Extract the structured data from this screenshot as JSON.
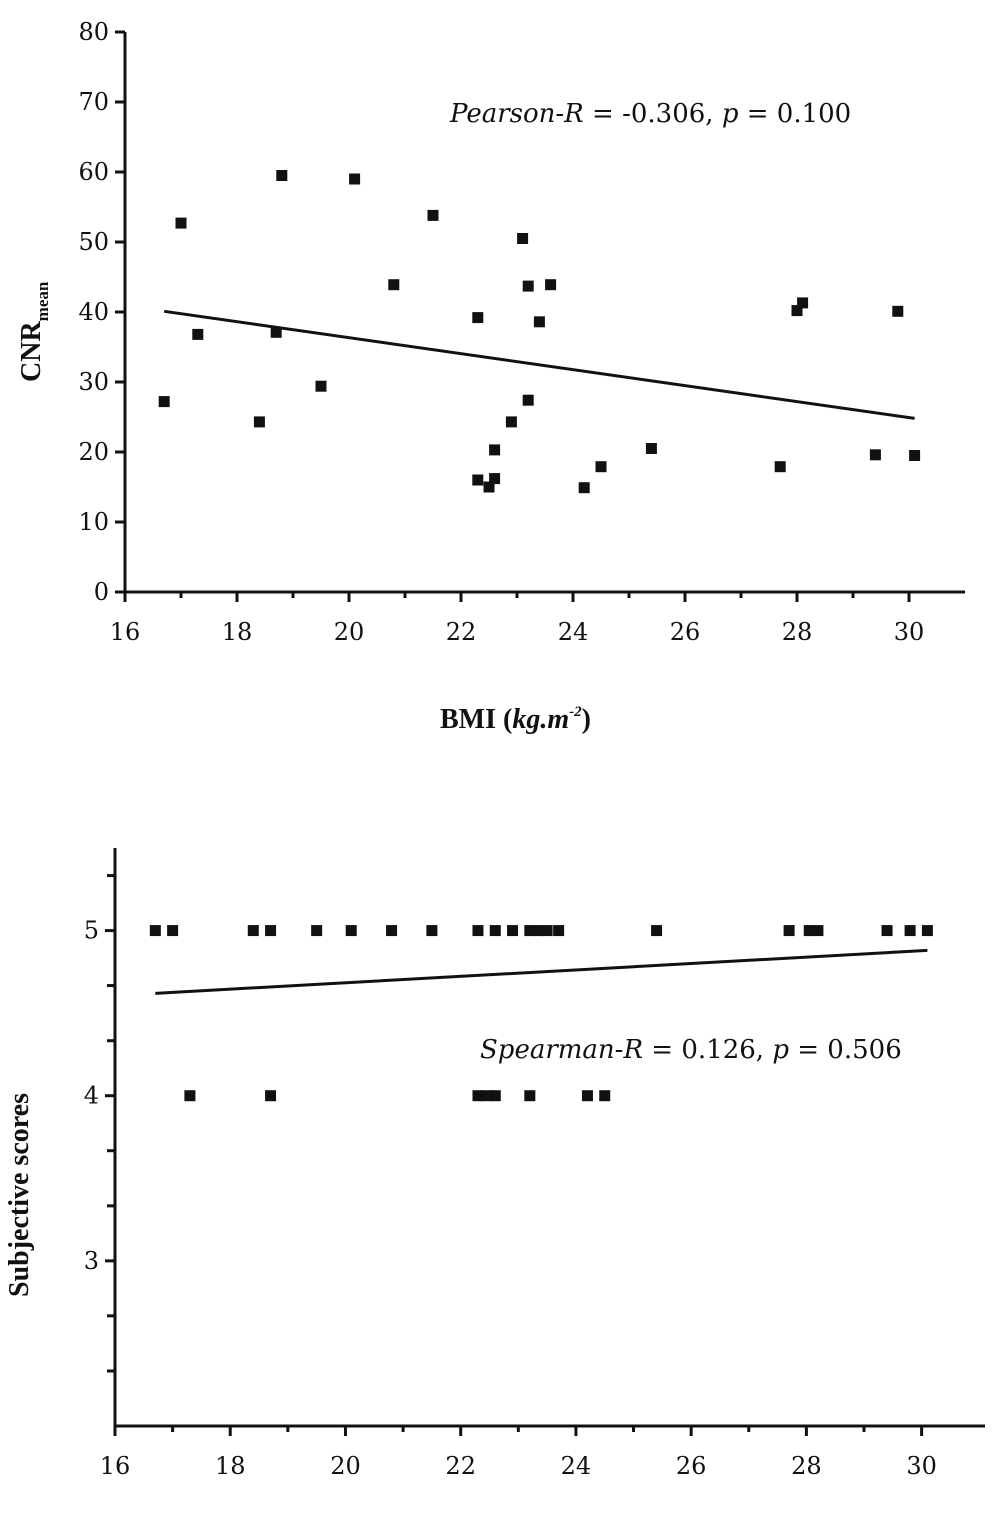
{
  "chart_data": [
    {
      "type": "scatter",
      "xlabel": "BMI (kg.m-2)",
      "xlabel_parts": {
        "prefix": "BMI (",
        "unit": "kg.m",
        "sup": "-2",
        "suffix": ")"
      },
      "ylabel": "CNRmean",
      "ylabel_parts": {
        "main": "CNR",
        "sub": "mean"
      },
      "xlim": [
        16,
        31
      ],
      "ylim": [
        0,
        80
      ],
      "xticks": [
        16,
        18,
        20,
        22,
        24,
        26,
        28,
        30
      ],
      "yticks": [
        0,
        10,
        20,
        30,
        40,
        50,
        60,
        70,
        80
      ],
      "annotation": {
        "lhs": "Pearson-R",
        "mid": " = -0.306, ",
        "p": "p",
        "rhs": " = 0.100"
      },
      "points": [
        [
          16.7,
          27.2
        ],
        [
          17.0,
          52.7
        ],
        [
          17.3,
          36.8
        ],
        [
          18.4,
          24.3
        ],
        [
          18.7,
          37.1
        ],
        [
          18.8,
          59.5
        ],
        [
          19.5,
          29.4
        ],
        [
          20.1,
          59.0
        ],
        [
          20.8,
          43.9
        ],
        [
          21.5,
          53.8
        ],
        [
          22.3,
          39.2
        ],
        [
          22.3,
          16.0
        ],
        [
          22.5,
          15.0
        ],
        [
          22.6,
          16.2
        ],
        [
          22.6,
          20.3
        ],
        [
          22.9,
          24.3
        ],
        [
          23.1,
          50.5
        ],
        [
          23.2,
          43.7
        ],
        [
          23.2,
          27.4
        ],
        [
          23.4,
          38.6
        ],
        [
          23.6,
          43.9
        ],
        [
          24.2,
          14.9
        ],
        [
          24.5,
          17.9
        ],
        [
          25.4,
          20.5
        ],
        [
          27.7,
          17.9
        ],
        [
          28.0,
          40.2
        ],
        [
          28.1,
          41.3
        ],
        [
          29.4,
          19.6
        ],
        [
          29.8,
          40.1
        ],
        [
          30.1,
          19.5
        ]
      ],
      "fit_line": {
        "x": [
          16.7,
          30.1
        ],
        "y": [
          40.1,
          24.8
        ]
      },
      "grid": false
    },
    {
      "type": "scatter",
      "xlabel": "",
      "ylabel": "Subjective scores",
      "xlim": [
        16,
        31.1
      ],
      "ylim": [
        2,
        5.5
      ],
      "xticks": [
        16,
        18,
        20,
        22,
        24,
        26,
        28,
        30
      ],
      "yticks_labeled": [
        3,
        4,
        5
      ],
      "yticks_minor": [
        2.333,
        2.667,
        3.333,
        3.667,
        4.333,
        4.667,
        5.333
      ],
      "annotation": {
        "lhs": "Spearman-R",
        "mid": " =  0.126, ",
        "p": "p",
        "rhs": " = 0.506"
      },
      "points": [
        [
          16.7,
          5
        ],
        [
          17.0,
          5
        ],
        [
          18.4,
          5
        ],
        [
          18.7,
          5
        ],
        [
          19.5,
          5
        ],
        [
          20.1,
          5
        ],
        [
          20.8,
          5
        ],
        [
          21.5,
          5
        ],
        [
          22.3,
          5
        ],
        [
          22.6,
          5
        ],
        [
          22.9,
          5
        ],
        [
          23.2,
          5
        ],
        [
          23.35,
          5
        ],
        [
          23.5,
          5
        ],
        [
          23.7,
          5
        ],
        [
          25.4,
          5
        ],
        [
          27.7,
          5
        ],
        [
          28.05,
          5
        ],
        [
          28.2,
          5
        ],
        [
          29.4,
          5
        ],
        [
          29.8,
          5
        ],
        [
          30.1,
          5
        ],
        [
          17.3,
          4
        ],
        [
          18.7,
          4
        ],
        [
          22.3,
          4
        ],
        [
          22.45,
          4
        ],
        [
          22.6,
          4
        ],
        [
          23.2,
          4
        ],
        [
          24.2,
          4
        ],
        [
          24.5,
          4
        ]
      ],
      "fit_line": {
        "x": [
          16.7,
          30.1
        ],
        "y": [
          4.62,
          4.88
        ]
      },
      "grid": false
    }
  ]
}
